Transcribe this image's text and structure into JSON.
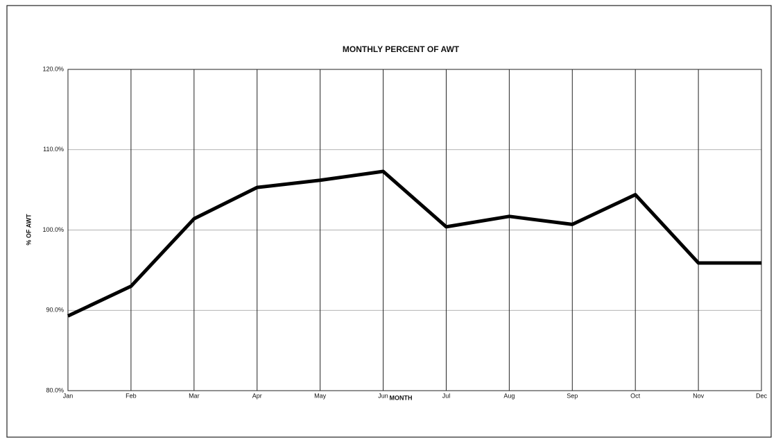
{
  "chart_data": {
    "type": "line",
    "title": "MONTHLY PERCENT OF AWT",
    "x_label": "MONTH",
    "y_label": "% OF AWT",
    "categories": [
      "Jan",
      "Feb",
      "Mar",
      "Apr",
      "May",
      "Jun",
      "Jul",
      "Aug",
      "Sep",
      "Oct",
      "Nov",
      "Dec"
    ],
    "values": [
      89.3,
      93.0,
      101.4,
      105.3,
      106.2,
      107.3,
      100.4,
      101.7,
      100.7,
      104.4,
      95.9,
      95.9
    ],
    "color": "#000000",
    "ylim": [
      80,
      120
    ],
    "yticks": [
      {
        "value": 80,
        "label": "80.0%"
      },
      {
        "value": 90,
        "label": "90.0%"
      },
      {
        "value": 100,
        "label": "100.0%"
      },
      {
        "value": 110,
        "label": "110.0%"
      },
      {
        "value": 120,
        "label": "120.0%"
      }
    ],
    "grid": true
  }
}
